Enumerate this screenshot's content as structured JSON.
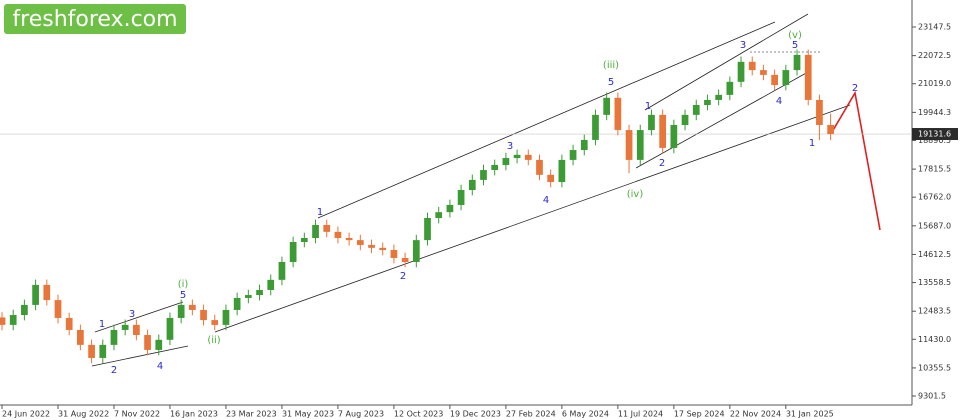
{
  "watermark": "freshforex.com",
  "chart_data": {
    "type": "candlestick",
    "up_color": "#3d9b35",
    "down_color": "#e8763a",
    "x": [
      0,
      1,
      2,
      3,
      4,
      5,
      6,
      7,
      8,
      9,
      10,
      11,
      12,
      13,
      14,
      15,
      16,
      17,
      18,
      19,
      20,
      21,
      22,
      23,
      24,
      25,
      26,
      27,
      28,
      29,
      30,
      31,
      32,
      33,
      34,
      35,
      36,
      37,
      38,
      39,
      40,
      41,
      42,
      43,
      44,
      45,
      46,
      47,
      48,
      49,
      50,
      51,
      52,
      53,
      54,
      55,
      56,
      57,
      58,
      59,
      60,
      61,
      62,
      63,
      64,
      65,
      66,
      67,
      68,
      69,
      70,
      71,
      72,
      73,
      74
    ],
    "open": [
      12250,
      11970,
      12340,
      12720,
      13470,
      12900,
      12230,
      11780,
      11220,
      10730,
      11220,
      11780,
      11970,
      11590,
      11030,
      11410,
      12230,
      12720,
      12530,
      12150,
      11970,
      12530,
      12980,
      13090,
      13280,
      13660,
      14330,
      15080,
      15230,
      15720,
      15460,
      15230,
      15150,
      14970,
      14860,
      14780,
      14480,
      14330,
      15150,
      15980,
      16200,
      16470,
      17030,
      17410,
      17780,
      17970,
      18230,
      18350,
      18160,
      17600,
      17330,
      18160,
      18530,
      18910,
      19850,
      20490,
      19280,
      18160,
      19280,
      19850,
      18610,
      19470,
      19850,
      20220,
      20410,
      20600,
      21090,
      21840,
      21530,
      21350,
      20970,
      21530,
      22100,
      20410,
      19470
    ],
    "high": [
      12450,
      12540,
      12920,
      13670,
      13670,
      13100,
      12430,
      11980,
      11420,
      11420,
      11980,
      12170,
      12170,
      11790,
      11610,
      12430,
      12920,
      12920,
      12730,
      12350,
      12730,
      13180,
      13290,
      13480,
      13860,
      14530,
      15280,
      15430,
      15920,
      15920,
      15660,
      15430,
      15350,
      15170,
      15060,
      14980,
      14680,
      15350,
      16180,
      16400,
      16670,
      17230,
      17610,
      17980,
      18170,
      18430,
      18550,
      18550,
      18360,
      17800,
      18360,
      18730,
      19110,
      20050,
      20690,
      20690,
      19480,
      19480,
      20050,
      20050,
      19670,
      20050,
      20420,
      20610,
      20800,
      21290,
      22040,
      22040,
      21730,
      21550,
      21730,
      22300,
      22300,
      20610,
      19900
    ],
    "low": [
      11770,
      11770,
      12140,
      12520,
      12700,
      12030,
      11580,
      11020,
      10530,
      10530,
      11020,
      11580,
      11390,
      10830,
      10830,
      11210,
      12030,
      12330,
      11950,
      11770,
      11770,
      12330,
      12780,
      12890,
      13080,
      13460,
      14130,
      14880,
      15030,
      15260,
      15030,
      14950,
      14770,
      14660,
      14580,
      14280,
      14130,
      14130,
      14950,
      15780,
      16000,
      16270,
      16830,
      17210,
      17580,
      17770,
      18030,
      17960,
      17400,
      17130,
      17130,
      17960,
      18330,
      18710,
      19650,
      19080,
      17660,
      17960,
      19080,
      18410,
      18410,
      19270,
      19650,
      20020,
      20210,
      20400,
      20890,
      21330,
      21150,
      20770,
      20770,
      21330,
      20210,
      18900,
      18900
    ],
    "close": [
      11970,
      12340,
      12720,
      13470,
      12900,
      12230,
      11780,
      11220,
      10730,
      11220,
      11780,
      11970,
      11590,
      11030,
      11410,
      12230,
      12720,
      12530,
      12150,
      11970,
      12530,
      12980,
      13090,
      13280,
      13660,
      14330,
      15080,
      15230,
      15720,
      15460,
      15230,
      15150,
      14970,
      14860,
      14780,
      14480,
      14330,
      15150,
      15980,
      16200,
      16470,
      17030,
      17410,
      17780,
      17970,
      18230,
      18350,
      18160,
      17600,
      17330,
      18160,
      18530,
      18910,
      19850,
      20490,
      19280,
      18160,
      19280,
      19850,
      18610,
      19470,
      19850,
      20220,
      20410,
      20600,
      21090,
      21840,
      21530,
      21350,
      20970,
      21530,
      22100,
      20410,
      19470,
      19130
    ],
    "xlim": [
      0,
      81
    ],
    "xticks": [
      {
        "value": 0,
        "label": "24 Jun 2022"
      },
      {
        "value": 5,
        "label": "31 Aug 2022"
      },
      {
        "value": 10,
        "label": "7 Nov 2022"
      },
      {
        "value": 15,
        "label": "16 Jan 2023"
      },
      {
        "value": 20,
        "label": "23 Mar 2023"
      },
      {
        "value": 25,
        "label": "31 May 2023"
      },
      {
        "value": 30,
        "label": "7 Aug 2023"
      },
      {
        "value": 35,
        "label": "12 Oct 2023"
      },
      {
        "value": 40,
        "label": "19 Dec 2023"
      },
      {
        "value": 45,
        "label": "27 Feb 2024"
      },
      {
        "value": 50,
        "label": "6 May 2024"
      },
      {
        "value": 55,
        "label": "11 Jul 2024"
      },
      {
        "value": 60,
        "label": "17 Sep 2024"
      },
      {
        "value": 65,
        "label": "22 Nov 2024"
      },
      {
        "value": 70,
        "label": "31 Jan 2025"
      }
    ],
    "ylim": [
      8964,
      24160
    ],
    "yticks": [
      23147.5,
      22072.5,
      {
        "value": 21019,
        "label": "21019.0"
      },
      19944.3,
      18890.5,
      17815.5,
      {
        "value": 16762,
        "label": "16762.0"
      },
      {
        "value": 15687,
        "label": "15687.0"
      },
      14612.5,
      13558.5,
      12483.5,
      {
        "value": 11430,
        "label": "11430.0"
      },
      10355.5,
      9301.5
    ],
    "current_price": 19131.6,
    "annotations": [
      {
        "text": "1",
        "color": "#2a2ad0"
      },
      {
        "text": "3",
        "color": "#2a2ad0"
      },
      {
        "text": "5",
        "color": "#2a2ad0"
      },
      {
        "text": "2",
        "color": "#2a2ad0"
      },
      {
        "text": "4",
        "color": "#2a2ad0"
      },
      {
        "text": "1",
        "color": "#2a2ad0"
      },
      {
        "text": "2",
        "color": "#2a2ad0"
      },
      {
        "text": "3",
        "color": "#2a2ad0"
      },
      {
        "text": "4",
        "color": "#2a2ad0"
      },
      {
        "text": "5",
        "color": "#2a2ad0"
      },
      {
        "text": "1",
        "color": "#2a2ad0"
      },
      {
        "text": "2",
        "color": "#2a2ad0"
      },
      {
        "text": "3",
        "color": "#2a2ad0"
      },
      {
        "text": "4",
        "color": "#2a2ad0"
      },
      {
        "text": "5",
        "color": "#2a2ad0"
      },
      {
        "text": "1",
        "color": "#2a2ad0"
      },
      {
        "text": "2",
        "color": "#2a2ad0"
      },
      {
        "text": "(i)",
        "color": "#4caf3a"
      },
      {
        "text": "(ii)",
        "color": "#4caf3a"
      },
      {
        "text": "(iii)",
        "color": "#4caf3a"
      },
      {
        "text": "(iv)",
        "color": "#4caf3a"
      },
      {
        "text": "(v)",
        "color": "#4caf3a"
      }
    ]
  }
}
